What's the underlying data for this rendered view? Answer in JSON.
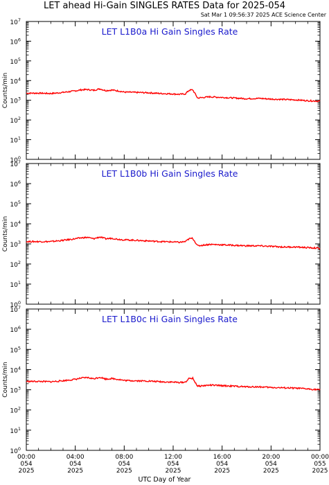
{
  "header": {
    "title": "LET ahead Hi-Gain SINGLES RATES Data for 2025-054",
    "timestamp": "Sat Mar  1 09:56:37 2025 ACE Science Center"
  },
  "xaxis": {
    "label": "UTC Day of Year",
    "ticks": [
      {
        "hour": 0,
        "l1": "00:00",
        "l2": "054",
        "l3": "2025"
      },
      {
        "hour": 4,
        "l1": "04:00",
        "l2": "054",
        "l3": "2025"
      },
      {
        "hour": 8,
        "l1": "08:00",
        "l2": "054",
        "l3": "2025"
      },
      {
        "hour": 12,
        "l1": "12:00",
        "l2": "054",
        "l3": "2025"
      },
      {
        "hour": 16,
        "l1": "16:00",
        "l2": "054",
        "l3": "2025"
      },
      {
        "hour": 20,
        "l1": "20:00",
        "l2": "054",
        "l3": "2025"
      },
      {
        "hour": 24,
        "l1": "00:00",
        "l2": "055",
        "l3": "2025"
      }
    ]
  },
  "colors": {
    "series": "#ff0000",
    "panel_title": "#1a1acc",
    "axes": "#000000"
  },
  "chart_data": [
    {
      "type": "line",
      "title": "LET L1B0a Hi Gain Singles Rate",
      "ylabel": "Counts/min",
      "yscale": "log",
      "ylim": [
        1,
        10000000
      ],
      "xlim": [
        0,
        24
      ],
      "yticks": [
        "10^0",
        "10^1",
        "10^2",
        "10^3",
        "10^4",
        "10^5",
        "10^6",
        "10^7"
      ],
      "x": [
        0,
        1,
        2,
        3,
        4,
        4.5,
        5,
        5.5,
        6,
        6.5,
        7,
        7.5,
        8,
        9,
        10,
        11,
        12,
        12.5,
        13,
        13.3,
        13.6,
        14,
        15,
        16,
        17,
        18,
        19,
        20,
        21,
        22,
        23,
        24
      ],
      "values": [
        2300,
        2300,
        2200,
        2500,
        3000,
        3400,
        3500,
        3200,
        3800,
        3100,
        3300,
        3000,
        2600,
        2500,
        2400,
        2200,
        2100,
        2000,
        2100,
        3200,
        3400,
        1300,
        1500,
        1400,
        1300,
        1200,
        1250,
        1150,
        1100,
        1050,
        950,
        900
      ]
    },
    {
      "type": "line",
      "title": "LET L1B0b Hi Gain Singles Rate",
      "ylabel": "Counts/min",
      "yscale": "log",
      "ylim": [
        1,
        10000000
      ],
      "xlim": [
        0,
        24
      ],
      "yticks": [
        "10^0",
        "10^1",
        "10^2",
        "10^3",
        "10^4",
        "10^5",
        "10^6",
        "10^7"
      ],
      "x": [
        0,
        1,
        2,
        3,
        4,
        4.5,
        5,
        5.5,
        6,
        6.5,
        7,
        7.5,
        8,
        9,
        10,
        11,
        12,
        12.5,
        13,
        13.3,
        13.6,
        14,
        15,
        16,
        17,
        18,
        19,
        20,
        21,
        22,
        23,
        24
      ],
      "values": [
        1300,
        1300,
        1300,
        1500,
        1800,
        2000,
        2100,
        1800,
        2200,
        1800,
        1900,
        1700,
        1600,
        1500,
        1400,
        1300,
        1250,
        1200,
        1300,
        1800,
        1900,
        800,
        950,
        900,
        850,
        800,
        800,
        750,
        700,
        700,
        650,
        600
      ]
    },
    {
      "type": "line",
      "title": "LET L1B0c Hi Gain Singles Rate",
      "ylabel": "Counts/min",
      "yscale": "log",
      "ylim": [
        1,
        10000000
      ],
      "xlim": [
        0,
        24
      ],
      "yticks": [
        "10^0",
        "10^1",
        "10^2",
        "10^3",
        "10^4",
        "10^5",
        "10^6",
        "10^7"
      ],
      "x": [
        0,
        1,
        2,
        3,
        4,
        4.5,
        5,
        5.5,
        6,
        6.5,
        7,
        7.5,
        8,
        9,
        10,
        11,
        12,
        12.5,
        13,
        13.3,
        13.6,
        14,
        15,
        16,
        17,
        18,
        19,
        20,
        21,
        22,
        23,
        24
      ],
      "values": [
        2600,
        2600,
        2500,
        2800,
        3300,
        3800,
        4000,
        3500,
        4200,
        3400,
        3600,
        3300,
        2900,
        2800,
        2700,
        2500,
        2400,
        2300,
        2400,
        3600,
        3700,
        1500,
        1700,
        1600,
        1500,
        1400,
        1400,
        1300,
        1250,
        1200,
        1100,
        1000
      ]
    }
  ]
}
